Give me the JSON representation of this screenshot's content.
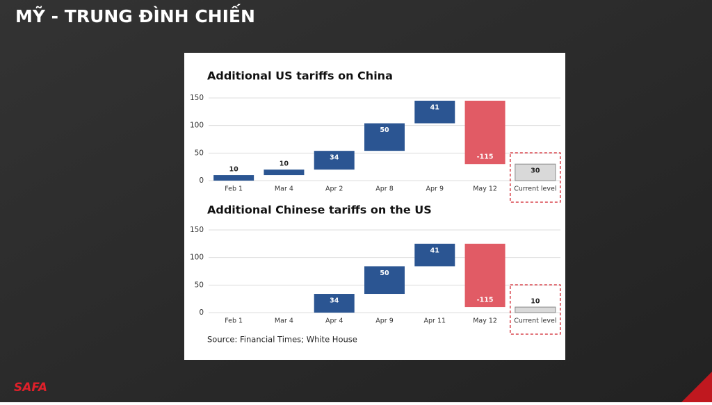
{
  "header": {
    "title": "MỸ - TRUNG ĐÌNH CHIẾN"
  },
  "chart_data": [
    {
      "type": "waterfall",
      "title": "Additional US tariffs on China",
      "categories": [
        "Feb 1",
        "Mar 4",
        "Apr 2",
        "Apr 8",
        "Apr 9",
        "May 12",
        "Current level"
      ],
      "values": [
        10,
        10,
        34,
        50,
        41,
        -115,
        30
      ],
      "ylim": [
        0,
        150
      ],
      "yticks": [
        0,
        50,
        100,
        150
      ],
      "grid": true,
      "colors": {
        "increase": "#2b5592",
        "decrease": "#e15b65",
        "total": "#d9d9d9"
      }
    },
    {
      "type": "waterfall",
      "title": "Additional Chinese tariffs on the US",
      "categories": [
        "Feb 1",
        "Mar 4",
        "Apr 4",
        "Apr 9",
        "Apr 11",
        "May 12",
        "Current level"
      ],
      "values": [
        null,
        null,
        34,
        50,
        41,
        -115,
        10
      ],
      "ylim": [
        0,
        150
      ],
      "yticks": [
        0,
        50,
        100,
        150
      ],
      "grid": true,
      "colors": {
        "increase": "#2b5592",
        "decrease": "#e15b65",
        "total": "#d9d9d9"
      }
    }
  ],
  "source": "Source: Financial Times; White House",
  "logo": "SAFA"
}
